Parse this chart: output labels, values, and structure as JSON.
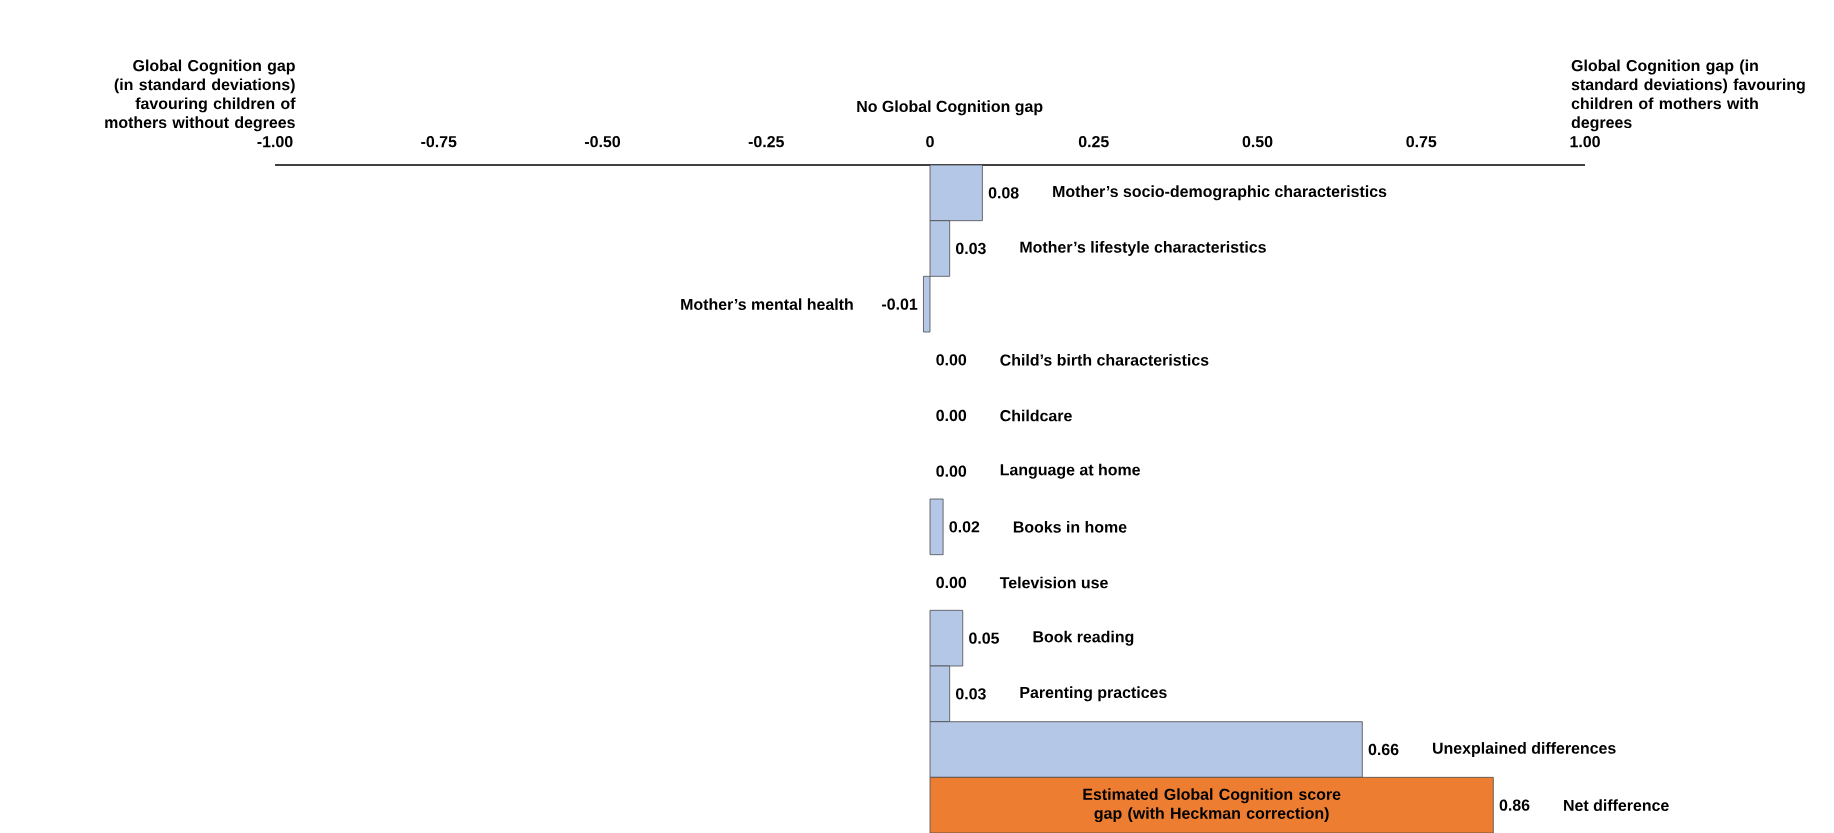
{
  "chart_data": {
    "type": "bar",
    "orientation": "horizontal",
    "categories": [
      "Mother’s socio-demographic characteristics",
      "Mother’s lifestyle characteristics",
      "Mother’s mental health",
      "Child’s birth characteristics",
      "Childcare",
      "Language at home",
      "Books in home",
      "Television use",
      "Book reading",
      "Parenting practices",
      "Unexplained differences",
      "Net difference"
    ],
    "values": [
      0.08,
      0.03,
      -0.01,
      0.0,
      0.0,
      0.0,
      0.02,
      0.0,
      0.05,
      0.03,
      0.66,
      0.86
    ],
    "colors": [
      "#b4c7e7",
      "#b4c7e7",
      "#b4c7e7",
      "#b4c7e7",
      "#b4c7e7",
      "#b4c7e7",
      "#b4c7e7",
      "#b4c7e7",
      "#b4c7e7",
      "#b4c7e7",
      "#b4c7e7",
      "#ed7d31"
    ],
    "value_labels": [
      "0.08",
      "0.03",
      "-0.01",
      "0.00",
      "0.00",
      "0.00",
      "0.02",
      "0.00",
      "0.05",
      "0.03",
      "0.66",
      "0.86"
    ],
    "xlim": [
      -1,
      1
    ],
    "xticks": [
      {
        "value": -1,
        "label": "-1.00"
      },
      {
        "value": -0.75,
        "label": "-0.75"
      },
      {
        "value": -0.5,
        "label": "-0.50"
      },
      {
        "value": -0.25,
        "label": "-0.25"
      },
      0,
      0.25,
      {
        "value": 0.5,
        "label": "0.50"
      },
      0.75,
      {
        "value": 1,
        "label": "1.00"
      }
    ],
    "annotations": [
      "Global Cognition gap (in standard deviations) favouring children of mothers without degrees",
      "No Global Cognition gap",
      "Global Cognition gap (in standard deviations) favouring children of mothers with degrees",
      "Estimated Global Cognition score gap (with Heckman correction)"
    ],
    "grid": false
  }
}
